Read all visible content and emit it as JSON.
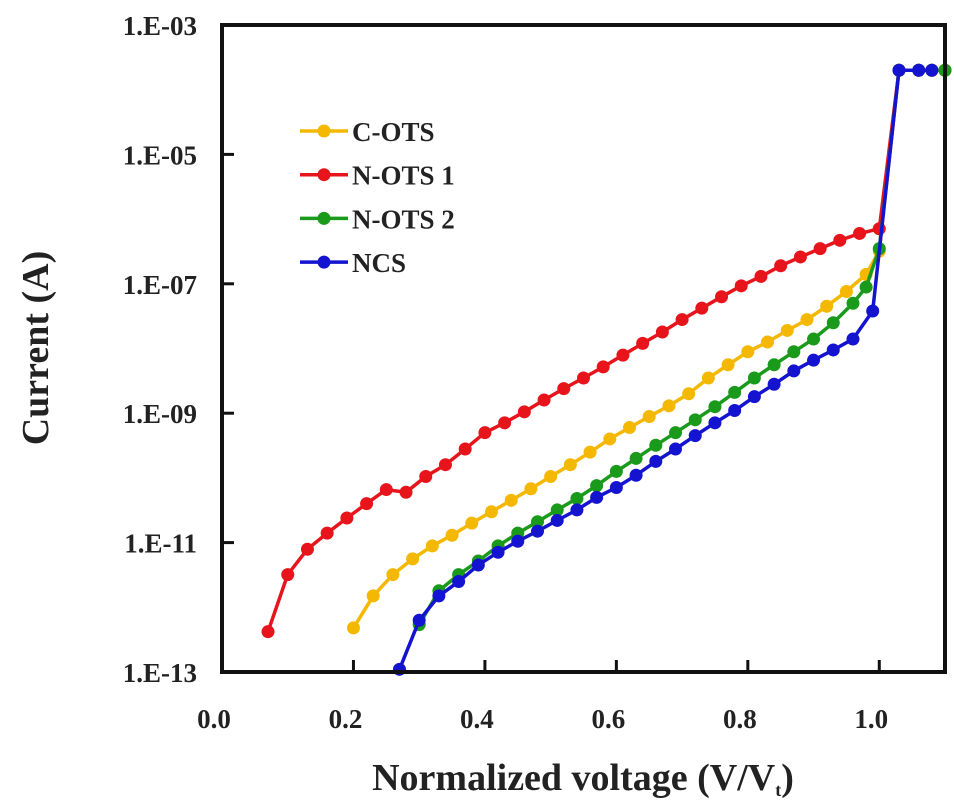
{
  "chart_data": {
    "type": "line",
    "title": "",
    "xlabel": "Normalized voltage (V/V",
    "xlabel_sub": "t",
    "xlabel_close": ")",
    "ylabel": "Current (A)",
    "xlim": [
      0.0,
      1.1
    ],
    "ylim": [
      1e-13,
      0.001
    ],
    "yscale": "log",
    "grid": false,
    "legend_position": "top-left",
    "xticks": [
      0.0,
      0.2,
      0.4,
      0.6,
      0.8,
      1.0
    ],
    "xtick_labels": [
      "0.0",
      "0.2",
      "0.4",
      "0.6",
      "0.8",
      "1.0"
    ],
    "yticks": [
      0.001,
      1e-05,
      1e-07,
      1e-09,
      1e-11,
      1e-13
    ],
    "ytick_labels": [
      "1.E-03",
      "1.E-05",
      "1.E-07",
      "1.E-09",
      "1.E-11",
      "1.E-13"
    ],
    "series": [
      {
        "name": "C-OTS",
        "color": "#f5b800",
        "x": [
          0.2,
          0.23,
          0.26,
          0.29,
          0.32,
          0.35,
          0.38,
          0.41,
          0.44,
          0.47,
          0.5,
          0.53,
          0.56,
          0.59,
          0.62,
          0.65,
          0.68,
          0.71,
          0.74,
          0.77,
          0.8,
          0.83,
          0.86,
          0.89,
          0.92,
          0.95,
          0.98,
          1.0,
          1.03,
          1.06,
          1.08,
          1.1
        ],
        "y": [
          4.8e-13,
          1.5e-12,
          3.2e-12,
          5.6e-12,
          8.9e-12,
          1.3e-11,
          2e-11,
          3e-11,
          4.5e-11,
          6.8e-11,
          1.05e-10,
          1.6e-10,
          2.5e-10,
          4e-10,
          6e-10,
          8.9e-10,
          1.3e-09,
          2e-09,
          3.5e-09,
          5.6e-09,
          8.9e-09,
          1.26e-08,
          1.9e-08,
          2.8e-08,
          4.5e-08,
          7.6e-08,
          1.4e-07,
          3.2e-07,
          0.0002,
          0.0002,
          0.0002,
          0.0002
        ]
      },
      {
        "name": "N-OTS 1",
        "color": "#e8141c",
        "x": [
          0.07,
          0.1,
          0.13,
          0.16,
          0.19,
          0.22,
          0.25,
          0.28,
          0.31,
          0.34,
          0.37,
          0.4,
          0.43,
          0.46,
          0.49,
          0.52,
          0.55,
          0.58,
          0.61,
          0.64,
          0.67,
          0.7,
          0.73,
          0.76,
          0.79,
          0.82,
          0.85,
          0.88,
          0.91,
          0.94,
          0.97,
          1.0,
          1.03,
          1.06,
          1.08,
          1.1
        ],
        "y": [
          4.2e-13,
          3.2e-12,
          7.9e-12,
          1.4e-11,
          2.4e-11,
          4e-11,
          6.6e-11,
          6e-11,
          1.05e-10,
          1.6e-10,
          2.8e-10,
          5e-10,
          7.1e-10,
          1.05e-09,
          1.6e-09,
          2.4e-09,
          3.5e-09,
          5.2e-09,
          7.9e-09,
          1.2e-08,
          1.8e-08,
          2.8e-08,
          4.2e-08,
          6.3e-08,
          9.3e-08,
          1.3e-07,
          1.9e-07,
          2.6e-07,
          3.5e-07,
          4.7e-07,
          6e-07,
          7.1e-07,
          0.0002,
          0.0002,
          0.0002,
          0.0002
        ]
      },
      {
        "name": "N-OTS 2",
        "color": "#1a9a1a",
        "x": [
          0.3,
          0.33,
          0.36,
          0.39,
          0.42,
          0.45,
          0.48,
          0.51,
          0.54,
          0.57,
          0.6,
          0.63,
          0.66,
          0.69,
          0.72,
          0.75,
          0.78,
          0.81,
          0.84,
          0.87,
          0.9,
          0.93,
          0.96,
          0.98,
          1.0,
          1.03,
          1.06,
          1.08,
          1.1
        ],
        "y": [
          5.4e-13,
          1.8e-12,
          3.2e-12,
          5.2e-12,
          8.9e-12,
          1.4e-11,
          2.1e-11,
          3.2e-11,
          4.8e-11,
          7.6e-11,
          1.26e-10,
          2e-10,
          3.2e-10,
          5e-10,
          7.9e-10,
          1.26e-09,
          2.1e-09,
          3.5e-09,
          5.6e-09,
          8.9e-09,
          1.4e-08,
          2.5e-08,
          5e-08,
          8.9e-08,
          3.5e-07,
          0.0002,
          0.0002,
          0.0002,
          0.0002
        ]
      },
      {
        "name": "NCS",
        "color": "#1414d0",
        "x": [
          0.27,
          0.3,
          0.33,
          0.36,
          0.39,
          0.42,
          0.45,
          0.48,
          0.51,
          0.54,
          0.57,
          0.6,
          0.63,
          0.66,
          0.69,
          0.72,
          0.75,
          0.78,
          0.81,
          0.84,
          0.87,
          0.9,
          0.93,
          0.96,
          0.99,
          1.03,
          1.06,
          1.08
        ],
        "y": [
          1.1e-13,
          6.3e-13,
          1.5e-12,
          2.5e-12,
          4.5e-12,
          7.1e-12,
          1.05e-11,
          1.5e-11,
          2.2e-11,
          3.2e-11,
          5e-11,
          7.1e-11,
          1.1e-10,
          1.8e-10,
          2.8e-10,
          4.5e-10,
          7.1e-10,
          1.1e-09,
          1.8e-09,
          2.8e-09,
          4.5e-09,
          6.6e-09,
          9.5e-09,
          1.4e-08,
          3.8e-08,
          0.0002,
          0.0002,
          0.0002
        ]
      }
    ]
  }
}
